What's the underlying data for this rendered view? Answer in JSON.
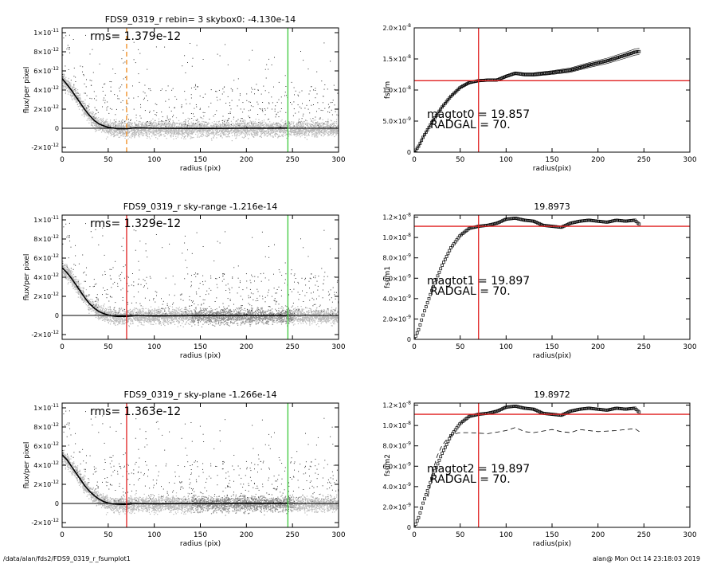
{
  "footer": {
    "left": "/data/alan/fds2/FDS9_0319_r_fsumplot1",
    "right": "alan@  Mon Oct 14 23:18:03 2019"
  },
  "colors": {
    "scatter_gray": "#b8b8b8",
    "profile": "#000000",
    "vline_red": "#e02020",
    "vline_orange": "#f08a1c",
    "vline_green": "#3cc83c"
  },
  "chart_data": [
    {
      "type": "scatter",
      "title": "FDS9_0319_r rebin= 3    skybox0: -4.130e-14",
      "annotation": "rms= 1.379e-12",
      "xlabel": "radius (pix)",
      "ylabel": "flux/per pixel",
      "xlim": [
        0,
        300
      ],
      "ylim": [
        -2.5e-12,
        1.05e-11
      ],
      "xticks": [
        "0",
        "50",
        "100",
        "150",
        "200",
        "250",
        "300"
      ],
      "yticks": [
        {
          "v": -2e-12,
          "m": "-2×10",
          "e": "-12"
        },
        {
          "v": 0,
          "m": "0",
          "e": ""
        },
        {
          "v": 2e-12,
          "m": "2×10",
          "e": "-12"
        },
        {
          "v": 4e-12,
          "m": "4×10",
          "e": "-12"
        },
        {
          "v": 6e-12,
          "m": "6×10",
          "e": "-12"
        },
        {
          "v": 8e-12,
          "m": "8×10",
          "e": "-12"
        },
        {
          "v": 1e-11,
          "m": "1×10",
          "e": "-11"
        }
      ],
      "profile": {
        "x": [
          0,
          5,
          10,
          15,
          20,
          25,
          30,
          35,
          40,
          45,
          50,
          55,
          60,
          65,
          70,
          80,
          100,
          150,
          200,
          245
        ],
        "y": [
          5.2e-12,
          4.6e-12,
          4e-12,
          3.3e-12,
          2.6e-12,
          1.9e-12,
          1.3e-12,
          8e-13,
          4.5e-13,
          2.5e-13,
          1e-13,
          3e-14,
          -5e-14,
          -5e-14,
          -5e-14,
          5e-14,
          0.0,
          -2e-14,
          0.0,
          2e-14
        ]
      },
      "vlines": [
        {
          "x": 70,
          "color": "#f08a1c",
          "style": "dashed"
        },
        {
          "x": 245,
          "color": "#3cc83c",
          "style": "solid"
        }
      ],
      "scatter_band": 1e-12,
      "dark_band_start": 300
    },
    {
      "type": "line",
      "title": "",
      "annotation_lines": [
        "magtot0 =  19.857",
        "RADGAL =     70."
      ],
      "xlabel": "radius(pix)",
      "ylabel": "fsum",
      "xlim": [
        0,
        300
      ],
      "ylim": [
        0,
        2e-08
      ],
      "xticks": [
        "0",
        "50",
        "100",
        "150",
        "200",
        "250",
        "300"
      ],
      "yticks": [
        {
          "v": 0,
          "m": "0",
          "e": ""
        },
        {
          "v": 5e-09,
          "m": "5.0×10",
          "e": "-9"
        },
        {
          "v": 1e-08,
          "m": "1.0×10",
          "e": "-8"
        },
        {
          "v": 1.5e-08,
          "m": "1.5×10",
          "e": "-8"
        },
        {
          "v": 2e-08,
          "m": "2.0×10",
          "e": "-8"
        }
      ],
      "series": [
        {
          "x": [
            0,
            5,
            10,
            20,
            30,
            40,
            50,
            60,
            70,
            80,
            90,
            100,
            110,
            120,
            130,
            150,
            170,
            190,
            210,
            230,
            240,
            245
          ],
          "y": [
            0,
            1e-09,
            2.5e-09,
            5e-09,
            7.2e-09,
            9e-09,
            1.04e-08,
            1.12e-08,
            1.15e-08,
            1.16e-08,
            1.16e-08,
            1.22e-08,
            1.27e-08,
            1.25e-08,
            1.25e-08,
            1.28e-08,
            1.32e-08,
            1.4e-08,
            1.47e-08,
            1.56e-08,
            1.61e-08,
            1.62e-08
          ]
        }
      ],
      "band": 5e-10,
      "vline_x": 70,
      "hline_y": 1.15e-08
    },
    {
      "type": "scatter",
      "title": "FDS9_0319_r sky-range -1.216e-14",
      "annotation": "rms= 1.329e-12",
      "xlabel": "radius (pix)",
      "ylabel": "flux/per pixel",
      "xlim": [
        0,
        300
      ],
      "ylim": [
        -2.5e-12,
        1.05e-11
      ],
      "xticks": [
        "0",
        "50",
        "100",
        "150",
        "200",
        "250",
        "300"
      ],
      "yticks": [
        {
          "v": -2e-12,
          "m": "-2×10",
          "e": "-12"
        },
        {
          "v": 0,
          "m": "0",
          "e": ""
        },
        {
          "v": 2e-12,
          "m": "2×10",
          "e": "-12"
        },
        {
          "v": 4e-12,
          "m": "4×10",
          "e": "-12"
        },
        {
          "v": 6e-12,
          "m": "6×10",
          "e": "-12"
        },
        {
          "v": 8e-12,
          "m": "8×10",
          "e": "-12"
        },
        {
          "v": 1e-11,
          "m": "1×10",
          "e": "-11"
        }
      ],
      "profile": {
        "x": [
          0,
          5,
          10,
          15,
          20,
          25,
          30,
          35,
          40,
          45,
          50,
          55,
          60,
          65,
          70,
          80,
          100,
          150,
          200,
          245
        ],
        "y": [
          5e-12,
          4.5e-12,
          3.9e-12,
          3.2e-12,
          2.5e-12,
          1.8e-12,
          1.2e-12,
          7.5e-13,
          4e-13,
          2e-13,
          5e-14,
          -5e-14,
          -1e-13,
          -1e-13,
          -1e-13,
          0.0,
          -5e-14,
          -2e-14,
          0.0,
          0.0
        ]
      },
      "vlines": [
        {
          "x": 70,
          "color": "#e02020",
          "style": "solid"
        },
        {
          "x": 245,
          "color": "#3cc83c",
          "style": "solid"
        }
      ],
      "scatter_band": 1e-12,
      "dark_band_start": 140
    },
    {
      "type": "line",
      "title": "19.8973",
      "annotation_lines": [
        "magtot1 =  19.897",
        "RADGAL =     70."
      ],
      "xlabel": "radius(pix)",
      "ylabel": "fsum1",
      "xlim": [
        0,
        300
      ],
      "ylim": [
        0,
        1.22e-08
      ],
      "xticks": [
        "0",
        "50",
        "100",
        "150",
        "200",
        "250",
        "300"
      ],
      "yticks": [
        {
          "v": 0,
          "m": "0",
          "e": ""
        },
        {
          "v": 2e-09,
          "m": "2.0×10",
          "e": "-9"
        },
        {
          "v": 4e-09,
          "m": "4.0×10",
          "e": "-9"
        },
        {
          "v": 6e-09,
          "m": "6.0×10",
          "e": "-9"
        },
        {
          "v": 8e-09,
          "m": "8.0×10",
          "e": "-9"
        },
        {
          "v": 1e-08,
          "m": "1.0×10",
          "e": "-8"
        },
        {
          "v": 1.2e-08,
          "m": "1.2×10",
          "e": "-8"
        }
      ],
      "series": [
        {
          "x": [
            0,
            5,
            10,
            20,
            30,
            40,
            50,
            60,
            70,
            80,
            90,
            100,
            110,
            120,
            130,
            140,
            150,
            160,
            170,
            180,
            190,
            200,
            210,
            220,
            230,
            240,
            245
          ],
          "y": [
            0,
            1e-09,
            2.5e-09,
            5e-09,
            7.2e-09,
            9e-09,
            1.02e-08,
            1.09e-08,
            1.11e-08,
            1.12e-08,
            1.14e-08,
            1.18e-08,
            1.19e-08,
            1.17e-08,
            1.16e-08,
            1.12e-08,
            1.11e-08,
            1.1e-08,
            1.14e-08,
            1.16e-08,
            1.17e-08,
            1.16e-08,
            1.15e-08,
            1.17e-08,
            1.16e-08,
            1.17e-08,
            1.13e-08
          ]
        }
      ],
      "vline_x": 70,
      "hline_y": 1.11e-08
    },
    {
      "type": "scatter",
      "title": "FDS9_0319_r sky-plane -1.266e-14",
      "annotation": "rms= 1.363e-12",
      "xlabel": "radius (pix)",
      "ylabel": "flux/per pixel",
      "xlim": [
        0,
        300
      ],
      "ylim": [
        -2.5e-12,
        1.05e-11
      ],
      "xticks": [
        "0",
        "50",
        "100",
        "150",
        "200",
        "250",
        "300"
      ],
      "yticks": [
        {
          "v": -2e-12,
          "m": "-2×10",
          "e": "-12"
        },
        {
          "v": 0,
          "m": "0",
          "e": ""
        },
        {
          "v": 2e-12,
          "m": "2×10",
          "e": "-12"
        },
        {
          "v": 4e-12,
          "m": "4×10",
          "e": "-12"
        },
        {
          "v": 6e-12,
          "m": "6×10",
          "e": "-12"
        },
        {
          "v": 8e-12,
          "m": "8×10",
          "e": "-12"
        },
        {
          "v": 1e-11,
          "m": "1×10",
          "e": "-11"
        }
      ],
      "profile": {
        "x": [
          0,
          5,
          10,
          15,
          20,
          25,
          30,
          35,
          40,
          45,
          50,
          55,
          60,
          65,
          70,
          80,
          100,
          150,
          200,
          245
        ],
        "y": [
          5.1e-12,
          4.6e-12,
          3.9e-12,
          3.2e-12,
          2.5e-12,
          1.8e-12,
          1.25e-12,
          8e-13,
          4.5e-13,
          2e-13,
          5e-14,
          -5e-14,
          -8e-14,
          -1e-13,
          -1e-13,
          0.0,
          -3e-14,
          0.0,
          2e-14,
          0.0
        ]
      },
      "vlines": [
        {
          "x": 70,
          "color": "#e02020",
          "style": "solid"
        },
        {
          "x": 245,
          "color": "#3cc83c",
          "style": "solid"
        }
      ],
      "scatter_band": 1e-12,
      "dark_band_start": 140
    },
    {
      "type": "line",
      "title": "19.8972",
      "annotation_lines": [
        "magtot2 =  19.897",
        "RADGAL =     70."
      ],
      "xlabel": "radius(pix)",
      "ylabel": "fsum2",
      "xlim": [
        0,
        300
      ],
      "ylim": [
        0,
        1.22e-08
      ],
      "xticks": [
        "0",
        "50",
        "100",
        "150",
        "200",
        "250",
        "300"
      ],
      "yticks": [
        {
          "v": 0,
          "m": "0",
          "e": ""
        },
        {
          "v": 2e-09,
          "m": "2.0×10",
          "e": "-9"
        },
        {
          "v": 4e-09,
          "m": "4.0×10",
          "e": "-9"
        },
        {
          "v": 6e-09,
          "m": "6.0×10",
          "e": "-9"
        },
        {
          "v": 8e-09,
          "m": "8.0×10",
          "e": "-9"
        },
        {
          "v": 1e-08,
          "m": "1.0×10",
          "e": "-8"
        },
        {
          "v": 1.2e-08,
          "m": "1.2×10",
          "e": "-8"
        }
      ],
      "series": [
        {
          "x": [
            0,
            5,
            10,
            20,
            30,
            40,
            50,
            60,
            70,
            80,
            90,
            100,
            110,
            120,
            130,
            140,
            150,
            160,
            170,
            180,
            190,
            200,
            210,
            220,
            230,
            240,
            245
          ],
          "y": [
            0,
            1e-09,
            2.5e-09,
            5e-09,
            7.2e-09,
            9e-09,
            1.02e-08,
            1.09e-08,
            1.11e-08,
            1.12e-08,
            1.14e-08,
            1.18e-08,
            1.19e-08,
            1.17e-08,
            1.16e-08,
            1.12e-08,
            1.11e-08,
            1.1e-08,
            1.14e-08,
            1.16e-08,
            1.17e-08,
            1.16e-08,
            1.15e-08,
            1.17e-08,
            1.16e-08,
            1.17e-08,
            1.13e-08
          ]
        },
        {
          "style": "dashed",
          "x": [
            15,
            20,
            25,
            30,
            35,
            40,
            45,
            50,
            60,
            80,
            100,
            110,
            120,
            130,
            150,
            160,
            170,
            180,
            200,
            220,
            240,
            245
          ],
          "y": [
            3e-09,
            5.5e-09,
            7e-09,
            8e-09,
            8.6e-09,
            9e-09,
            9.2e-09,
            9.3e-09,
            9.3e-09,
            9.2e-09,
            9.5e-09,
            9.8e-09,
            9.4e-09,
            9.3e-09,
            9.6e-09,
            9.4e-09,
            9.3e-09,
            9.6e-09,
            9.4e-09,
            9.5e-09,
            9.7e-09,
            9.4e-09
          ]
        }
      ],
      "vline_x": 70,
      "hline_y": 1.11e-08
    }
  ]
}
